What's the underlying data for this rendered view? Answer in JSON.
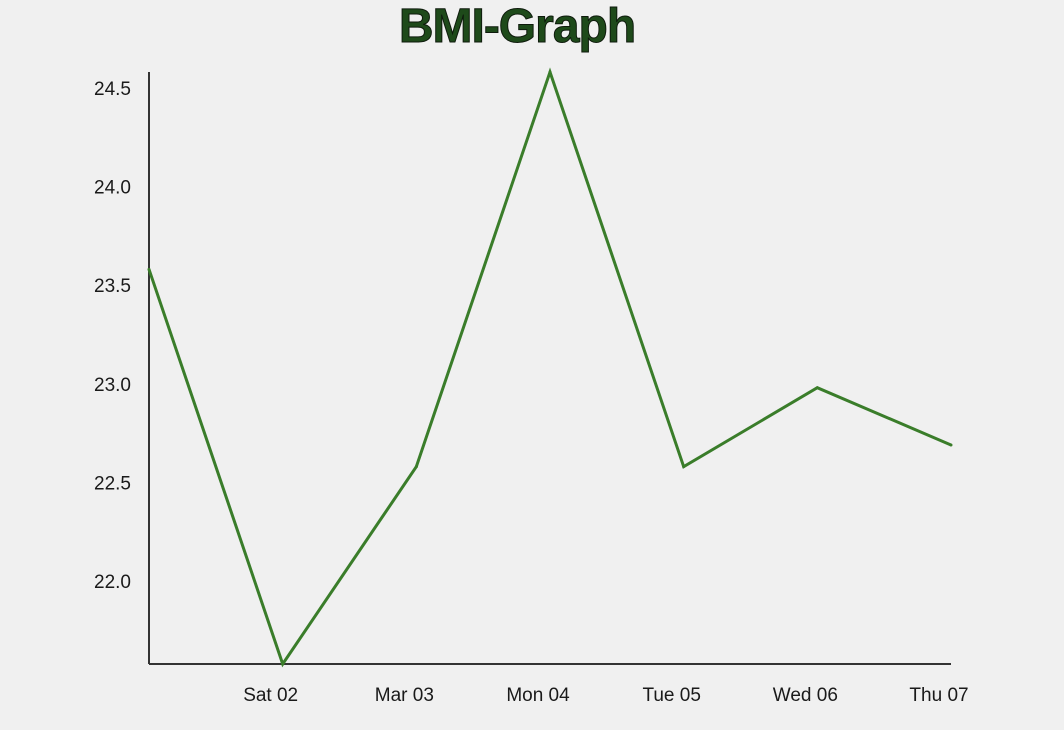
{
  "chart_data": {
    "type": "line",
    "title": "BMI-Graph",
    "xlabel": "",
    "ylabel": "",
    "x_tick_labels": [
      "Sat 02",
      "Mar 03",
      "Mon 04",
      "Tue 05",
      "Wed 06",
      "Thu 07"
    ],
    "y_tick_labels": [
      "22.0",
      "22.5",
      "23.0",
      "23.5",
      "24.0",
      "24.5"
    ],
    "y_ticks": [
      22.0,
      22.5,
      23.0,
      23.5,
      24.0,
      24.5
    ],
    "x_points": [
      "",
      "Sat 02",
      "Mar 03",
      "Mon 04",
      "Tue 05",
      "Wed 06",
      "Thu 07"
    ],
    "series": [
      {
        "values": [
          23.58,
          21.58,
          22.58,
          24.58,
          22.58,
          22.98,
          22.69
        ],
        "color": "#3a7d2a"
      }
    ],
    "ylim": [
      21.58,
      24.58
    ],
    "grid": false,
    "colors": {
      "line": "#3a7d2a",
      "axis": "#333333",
      "title": "#1e4a1a",
      "background": "#f0f0f0"
    }
  }
}
